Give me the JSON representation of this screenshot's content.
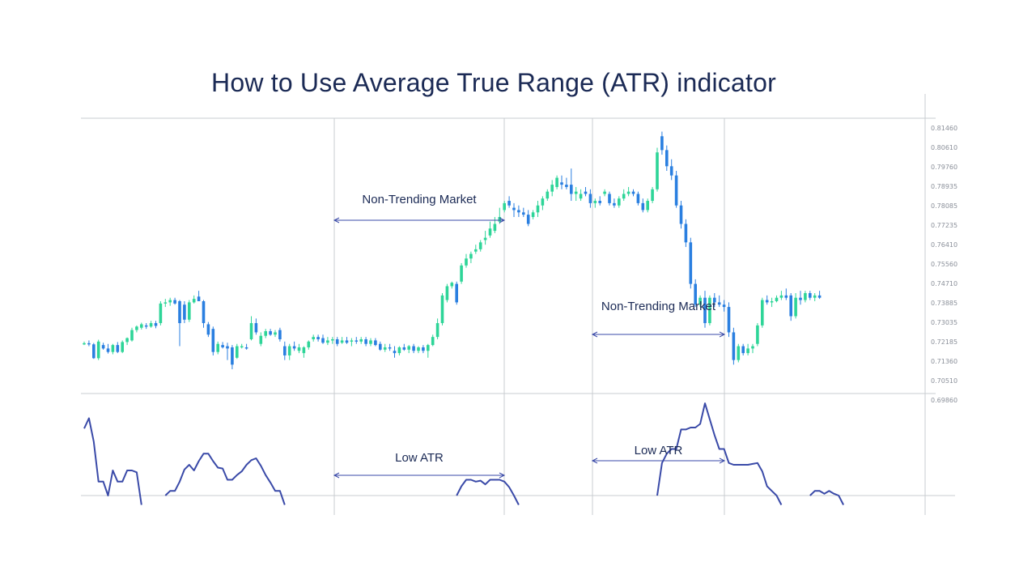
{
  "title": "How to Use Average True Range (ATR) indicator",
  "colors": {
    "bull": "#2ed598",
    "bear": "#2a7fe0",
    "atr_line": "#3a4aa8",
    "grid": "#c9ccd1",
    "arrow": "#3a4aa8",
    "text": "#1b2a55"
  },
  "chart_data": [
    {
      "type": "candlestick",
      "title": "",
      "y_tick_labels": [
        "0.81460",
        "0.80610",
        "0.79760",
        "0.78935",
        "0.78085",
        "0.77235",
        "0.76410",
        "0.75560",
        "0.74710",
        "0.73885",
        "0.73035",
        "0.72185",
        "0.71360",
        "0.70510"
      ],
      "ylim": [
        0.7051,
        0.8146
      ],
      "grid": "vertical separators",
      "candles_ohlc": [
        [
          0.7212,
          0.722,
          0.7205,
          0.7213
        ],
        [
          0.7213,
          0.7225,
          0.72,
          0.7208
        ],
        [
          0.7208,
          0.7214,
          0.7145,
          0.7148
        ],
        [
          0.7148,
          0.7228,
          0.714,
          0.722
        ],
        [
          0.7205,
          0.7215,
          0.7185,
          0.719
        ],
        [
          0.719,
          0.721,
          0.7168,
          0.7175
        ],
        [
          0.7175,
          0.721,
          0.7165,
          0.7205
        ],
        [
          0.7205,
          0.7218,
          0.717,
          0.7175
        ],
        [
          0.7175,
          0.7225,
          0.717,
          0.7218
        ],
        [
          0.7218,
          0.7238,
          0.7205,
          0.7235
        ],
        [
          0.7225,
          0.728,
          0.722,
          0.727
        ],
        [
          0.727,
          0.729,
          0.726,
          0.7285
        ],
        [
          0.728,
          0.7302,
          0.7272,
          0.7295
        ],
        [
          0.729,
          0.73,
          0.7275,
          0.7285
        ],
        [
          0.7285,
          0.731,
          0.728,
          0.73
        ],
        [
          0.73,
          0.731,
          0.7278,
          0.7288
        ],
        [
          0.73,
          0.7395,
          0.729,
          0.7385
        ],
        [
          0.7385,
          0.7405,
          0.737,
          0.739
        ],
        [
          0.739,
          0.741,
          0.7375,
          0.74
        ],
        [
          0.74,
          0.741,
          0.738,
          0.7385
        ],
        [
          0.7395,
          0.74,
          0.72,
          0.73
        ],
        [
          0.738,
          0.7395,
          0.73,
          0.7315
        ],
        [
          0.7315,
          0.74,
          0.7305,
          0.739
        ],
        [
          0.739,
          0.742,
          0.7385,
          0.7405
        ],
        [
          0.7415,
          0.744,
          0.74,
          0.7395
        ],
        [
          0.7395,
          0.74,
          0.728,
          0.73
        ],
        [
          0.7295,
          0.7305,
          0.724,
          0.725
        ],
        [
          0.7275,
          0.7285,
          0.716,
          0.7175
        ],
        [
          0.7175,
          0.722,
          0.7165,
          0.721
        ],
        [
          0.7205,
          0.7218,
          0.719,
          0.7195
        ],
        [
          0.72,
          0.7215,
          0.714,
          0.719
        ],
        [
          0.7195,
          0.7205,
          0.71,
          0.712
        ],
        [
          0.715,
          0.721,
          0.7145,
          0.72
        ],
        [
          0.72,
          0.721,
          0.719,
          0.72
        ],
        [
          0.7195,
          0.721,
          0.7185,
          0.719
        ],
        [
          0.723,
          0.733,
          0.7225,
          0.73
        ],
        [
          0.73,
          0.732,
          0.725,
          0.726
        ],
        [
          0.721,
          0.726,
          0.72,
          0.7245
        ],
        [
          0.7245,
          0.7275,
          0.7235,
          0.7265
        ],
        [
          0.7265,
          0.7275,
          0.7245,
          0.725
        ],
        [
          0.725,
          0.727,
          0.724,
          0.726
        ],
        [
          0.727,
          0.728,
          0.722,
          0.723
        ],
        [
          0.72,
          0.722,
          0.714,
          0.716
        ],
        [
          0.716,
          0.721,
          0.714,
          0.72
        ],
        [
          0.72,
          0.722,
          0.718,
          0.719
        ],
        [
          0.718,
          0.721,
          0.717,
          0.7195
        ],
        [
          0.717,
          0.72,
          0.715,
          0.7195
        ],
        [
          0.7195,
          0.7225,
          0.7185,
          0.722
        ],
        [
          0.723,
          0.725,
          0.722,
          0.724
        ],
        [
          0.724,
          0.725,
          0.722,
          0.723
        ],
        [
          0.7235,
          0.725,
          0.721,
          0.7215
        ],
        [
          0.7215,
          0.724,
          0.7205,
          0.7225
        ],
        [
          0.7225,
          0.724,
          0.721,
          0.723
        ],
        [
          0.723,
          0.724,
          0.72,
          0.721
        ],
        [
          0.7215,
          0.724,
          0.721,
          0.7225
        ],
        [
          0.7225,
          0.724,
          0.721,
          0.7215
        ],
        [
          0.722,
          0.7235,
          0.72,
          0.7225
        ],
        [
          0.7225,
          0.724,
          0.721,
          0.722
        ],
        [
          0.722,
          0.724,
          0.721,
          0.723
        ],
        [
          0.723,
          0.724,
          0.72,
          0.721
        ],
        [
          0.721,
          0.7235,
          0.72,
          0.7225
        ],
        [
          0.7225,
          0.7235,
          0.72,
          0.7205
        ],
        [
          0.721,
          0.722,
          0.718,
          0.7185
        ],
        [
          0.7185,
          0.721,
          0.7175,
          0.7195
        ],
        [
          0.7195,
          0.721,
          0.718,
          0.719
        ],
        [
          0.718,
          0.72,
          0.715,
          0.717
        ],
        [
          0.717,
          0.72,
          0.716,
          0.7195
        ],
        [
          0.7195,
          0.721,
          0.718,
          0.7185
        ],
        [
          0.7185,
          0.7205,
          0.717,
          0.72
        ],
        [
          0.72,
          0.721,
          0.717,
          0.718
        ],
        [
          0.718,
          0.72,
          0.717,
          0.7195
        ],
        [
          0.7195,
          0.7205,
          0.717,
          0.718
        ],
        [
          0.718,
          0.721,
          0.715,
          0.7205
        ],
        [
          0.7205,
          0.725,
          0.72,
          0.724
        ],
        [
          0.724,
          0.732,
          0.723,
          0.73
        ],
        [
          0.73,
          0.743,
          0.729,
          0.742
        ],
        [
          0.74,
          0.747,
          0.739,
          0.746
        ],
        [
          0.746,
          0.748,
          0.745,
          0.7475
        ],
        [
          0.747,
          0.748,
          0.738,
          0.739
        ],
        [
          0.748,
          0.756,
          0.747,
          0.755
        ],
        [
          0.755,
          0.76,
          0.754,
          0.758
        ],
        [
          0.758,
          0.761,
          0.756,
          0.76
        ],
        [
          0.761,
          0.764,
          0.76,
          0.762
        ],
        [
          0.762,
          0.766,
          0.761,
          0.765
        ],
        [
          0.766,
          0.77,
          0.764,
          0.767
        ],
        [
          0.768,
          0.774,
          0.767,
          0.771
        ],
        [
          0.77,
          0.776,
          0.769,
          0.773
        ],
        [
          0.774,
          0.78,
          0.773,
          0.776
        ],
        [
          0.779,
          0.783,
          0.778,
          0.782
        ],
        [
          0.783,
          0.785,
          0.78,
          0.781
        ],
        [
          0.78,
          0.782,
          0.776,
          0.779
        ],
        [
          0.779,
          0.781,
          0.776,
          0.778
        ],
        [
          0.778,
          0.78,
          0.776,
          0.777
        ],
        [
          0.777,
          0.779,
          0.772,
          0.773
        ],
        [
          0.776,
          0.779,
          0.775,
          0.778
        ],
        [
          0.778,
          0.783,
          0.776,
          0.781
        ],
        [
          0.781,
          0.785,
          0.779,
          0.784
        ],
        [
          0.784,
          0.788,
          0.783,
          0.787
        ],
        [
          0.787,
          0.792,
          0.785,
          0.79
        ],
        [
          0.789,
          0.794,
          0.788,
          0.793
        ],
        [
          0.791,
          0.794,
          0.788,
          0.79
        ],
        [
          0.79,
          0.793,
          0.788,
          0.789
        ],
        [
          0.79,
          0.797,
          0.783,
          0.786
        ],
        [
          0.786,
          0.789,
          0.783,
          0.787
        ],
        [
          0.784,
          0.788,
          0.783,
          0.786
        ],
        [
          0.787,
          0.789,
          0.785,
          0.786
        ],
        [
          0.786,
          0.788,
          0.78,
          0.782
        ],
        [
          0.782,
          0.784,
          0.78,
          0.783
        ],
        [
          0.783,
          0.785,
          0.781,
          0.782
        ],
        [
          0.786,
          0.788,
          0.785,
          0.787
        ],
        [
          0.786,
          0.787,
          0.781,
          0.782
        ],
        [
          0.782,
          0.784,
          0.78,
          0.781
        ],
        [
          0.781,
          0.785,
          0.78,
          0.784
        ],
        [
          0.784,
          0.788,
          0.783,
          0.786
        ],
        [
          0.786,
          0.789,
          0.785,
          0.787
        ],
        [
          0.787,
          0.788,
          0.785,
          0.786
        ],
        [
          0.786,
          0.787,
          0.781,
          0.782
        ],
        [
          0.782,
          0.784,
          0.778,
          0.779
        ],
        [
          0.779,
          0.784,
          0.778,
          0.783
        ],
        [
          0.783,
          0.789,
          0.782,
          0.788
        ],
        [
          0.788,
          0.806,
          0.787,
          0.804
        ],
        [
          0.811,
          0.813,
          0.803,
          0.805
        ],
        [
          0.805,
          0.807,
          0.796,
          0.798
        ],
        [
          0.798,
          0.801,
          0.792,
          0.794
        ],
        [
          0.794,
          0.796,
          0.78,
          0.781
        ],
        [
          0.781,
          0.783,
          0.771,
          0.773
        ],
        [
          0.773,
          0.775,
          0.763,
          0.765
        ],
        [
          0.765,
          0.767,
          0.745,
          0.747
        ],
        [
          0.747,
          0.749,
          0.737,
          0.738
        ],
        [
          0.738,
          0.742,
          0.737,
          0.741
        ],
        [
          0.741,
          0.744,
          0.728,
          0.73
        ],
        [
          0.73,
          0.742,
          0.729,
          0.741
        ],
        [
          0.741,
          0.743,
          0.737,
          0.739
        ],
        [
          0.739,
          0.742,
          0.737,
          0.738
        ],
        [
          0.738,
          0.74,
          0.735,
          0.737
        ],
        [
          0.737,
          0.739,
          0.724,
          0.726
        ],
        [
          0.726,
          0.728,
          0.712,
          0.714
        ],
        [
          0.714,
          0.721,
          0.713,
          0.72
        ],
        [
          0.72,
          0.721,
          0.716,
          0.717
        ],
        [
          0.717,
          0.721,
          0.716,
          0.719
        ],
        [
          0.719,
          0.721,
          0.717,
          0.72
        ],
        [
          0.721,
          0.73,
          0.72,
          0.729
        ],
        [
          0.729,
          0.741,
          0.728,
          0.74
        ],
        [
          0.74,
          0.742,
          0.738,
          0.739
        ],
        [
          0.739,
          0.741,
          0.737,
          0.7395
        ],
        [
          0.7395,
          0.742,
          0.739,
          0.741
        ],
        [
          0.741,
          0.744,
          0.74,
          0.742
        ],
        [
          0.742,
          0.745,
          0.74,
          0.741
        ],
        [
          0.742,
          0.743,
          0.731,
          0.733
        ],
        [
          0.733,
          0.743,
          0.732,
          0.741
        ],
        [
          0.741,
          0.744,
          0.738,
          0.74
        ],
        [
          0.74,
          0.744,
          0.739,
          0.743
        ],
        [
          0.743,
          0.744,
          0.74,
          0.741
        ],
        [
          0.741,
          0.743,
          0.7395,
          0.742
        ],
        [
          0.742,
          0.744,
          0.7405,
          0.741
        ]
      ],
      "annotations": [
        {
          "text": "Non-Trending Market",
          "span_candles": [
            40,
            67
          ]
        },
        {
          "text": "Non-Trending Market",
          "span_candles": [
            81,
            101
          ]
        }
      ]
    },
    {
      "type": "line",
      "title": "",
      "y_tick_labels": [
        "0.69860"
      ],
      "ylim": [
        0,
        1
      ],
      "series": [
        {
          "values": [
            0.72,
            0.83,
            0.58,
            0.15,
            0.15,
            0.0,
            0.27,
            0.15,
            0.15,
            0.27,
            0.27,
            0.25,
            -0.1,
            null,
            null,
            null,
            null,
            0.0,
            0.05,
            0.05,
            0.15,
            0.28,
            0.33,
            0.27,
            0.37,
            0.45,
            0.45,
            0.37,
            0.3,
            0.29,
            0.17,
            0.17,
            0.22,
            0.26,
            0.33,
            0.38,
            0.4,
            0.32,
            0.22,
            0.14,
            0.05,
            0.05,
            -0.1,
            null,
            null,
            null,
            null,
            null,
            null,
            null,
            null,
            null,
            null,
            null,
            null,
            null,
            null,
            null,
            null,
            null,
            null,
            null,
            null,
            null,
            null,
            null,
            null,
            null,
            null,
            null,
            null,
            null,
            null,
            null,
            null,
            null,
            null,
            null,
            0.0,
            0.1,
            0.17,
            0.17,
            0.15,
            0.16,
            0.12,
            0.17,
            0.17,
            0.17,
            0.15,
            0.09,
            0.0,
            -0.1,
            null,
            null,
            null,
            null,
            null,
            null,
            null,
            null,
            null,
            null,
            null,
            null,
            null,
            null,
            null,
            null,
            null,
            null,
            null,
            null,
            null,
            null,
            null,
            null,
            null,
            null,
            null,
            null,
            0.0,
            0.35,
            0.45,
            0.5,
            0.5,
            0.71,
            0.71,
            0.73,
            0.73,
            0.77,
            0.99,
            0.82,
            0.65,
            0.5,
            0.5,
            0.35,
            0.33,
            0.33,
            0.33,
            0.33,
            0.34,
            0.35,
            0.26,
            0.1,
            0.05,
            0.0,
            -0.1,
            null,
            null,
            null,
            null,
            null,
            0.0,
            0.05,
            0.05,
            0.02,
            0.05,
            0.02,
            0.0,
            -0.1,
            null,
            null,
            null,
            null,
            null
          ]
        }
      ],
      "annotations": [
        {
          "text": "Low ATR",
          "span_candles": [
            40,
            67
          ]
        },
        {
          "text": "Low ATR",
          "span_candles": [
            81,
            101
          ]
        }
      ]
    }
  ]
}
